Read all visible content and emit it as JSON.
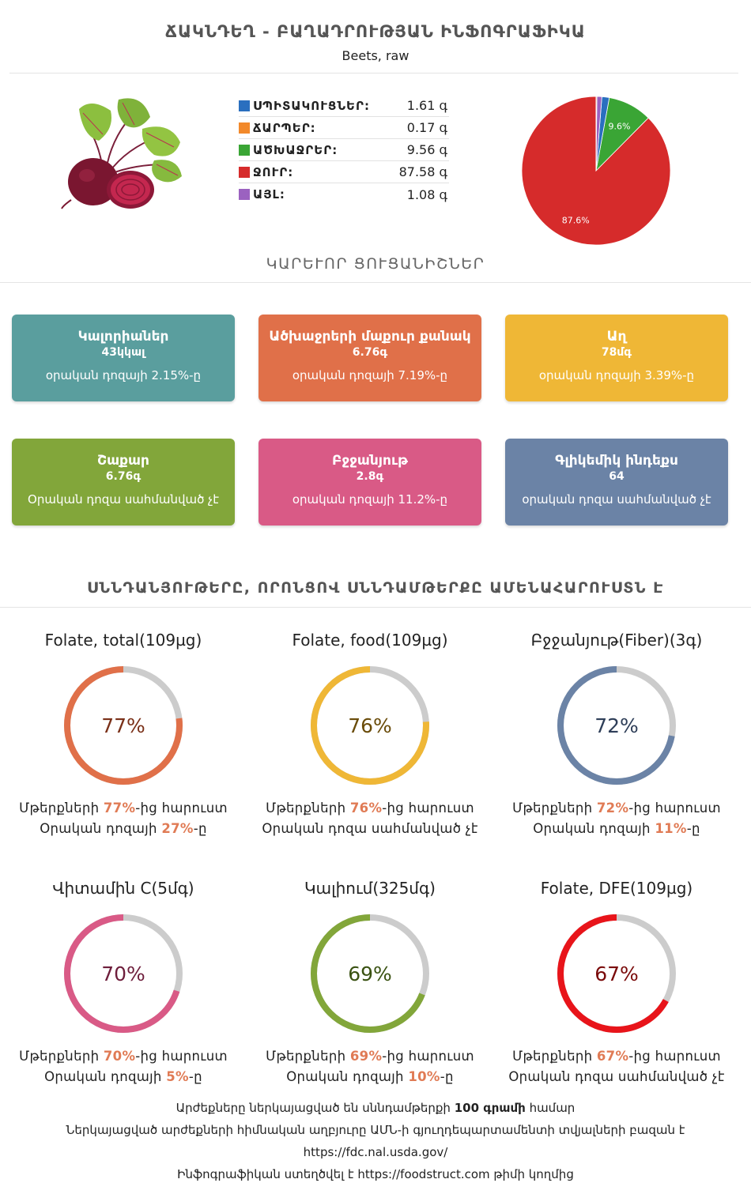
{
  "header": {
    "title": "ՃԱԿՆԴԵՂ - ԲԱՂԱԴՐՈՒԹՅԱՆ ԻՆՖՈԳՐԱՖԻԿԱ",
    "subtitle": "Beets, raw"
  },
  "composition": {
    "items": [
      {
        "label": "ՍՊԻՏԱԿՈՒՑՆԵՐ:",
        "value": "1.61 գ",
        "color": "#2a6fbf"
      },
      {
        "label": "ՃԱՐՊԵՐ:",
        "value": "0.17 գ",
        "color": "#f2892b"
      },
      {
        "label": "ԱԾԽԱՋՐԵՐ:",
        "value": "9.56 գ",
        "color": "#3aa535"
      },
      {
        "label": "ՋՈՒՐ:",
        "value": "87.58 գ",
        "color": "#d62b2b"
      },
      {
        "label": "ԱՅԼ:",
        "value": "1.08 գ",
        "color": "#9b62c0"
      }
    ]
  },
  "chart_data": {
    "type": "pie",
    "slices": [
      {
        "label": "ՋՈՒՐ",
        "value": 87.58,
        "color": "#d62b2b",
        "data_label": "87.6%"
      },
      {
        "label": "ԱԾԽԱՋՐԵՐ",
        "value": 9.56,
        "color": "#3aa535",
        "data_label": "9.6%"
      },
      {
        "label": "ՍՊԻՏԱԿՈՒՑՆԵՐ",
        "value": 1.61,
        "color": "#2a6fbf",
        "data_label": ""
      },
      {
        "label": "ԱՅԼ",
        "value": 1.08,
        "color": "#9b62c0",
        "data_label": ""
      },
      {
        "label": "ՃԱՐՊԵՐ",
        "value": 0.17,
        "color": "#f2892b",
        "data_label": ""
      }
    ]
  },
  "key_section_title": "ԿԱՐԵՒՈՐ ՑՈՒՑԱՆԻՇՆԵՐ",
  "cards": [
    {
      "title": "Կալորիաներ",
      "value": "43կկալ",
      "note": "օրական դոզայի 2.15%-ը",
      "color": "#5a9e9e"
    },
    {
      "title": "Ածխաջրերի մաքուր քանակ",
      "value": "6.76գ",
      "note": "օրական դոզայի 7.19%-ը",
      "color": "#e07049"
    },
    {
      "title": "Աղ",
      "value": "78մգ",
      "note": "օրական դոզայի 3.39%-ը",
      "color": "#efb736"
    },
    {
      "title": "Շաքար",
      "value": "6.76գ",
      "note": "Օրական դոզա սահմանված չէ",
      "color": "#82a63a"
    },
    {
      "title": "Բջջանյութ",
      "value": "2.8գ",
      "note": "օրական դոզայի 11.2%-ը",
      "color": "#d95a86"
    },
    {
      "title": "Գլիկեմիկ ինդեքս",
      "value": "64",
      "note": "օրական դոզա սահմանված չէ",
      "color": "#6b83a6"
    }
  ],
  "nutrients_section_title": "ՍՆՆԴԱՆՅՈՒԹԵՐԸ, ՈՐՈՆՑՈՎ ՍՆՆԴԱՄԹԵՐՔԸ ԱՄԵՆԱՀԱՐՈՒՍՏՆ Է",
  "nutrients": [
    {
      "title": "Folate, total(109µg)",
      "percent": 77,
      "percent_label": "77%",
      "color": "#e07049",
      "text_color": "#7a3018",
      "l1_pre": "Մթերքների ",
      "l1_hl": "77%",
      "l1_post": "-ից հարուստ",
      "l2_pre": "Օրական դոզայի ",
      "l2_hl": "27%",
      "l2_post": "-ը"
    },
    {
      "title": "Folate, food(109µg)",
      "percent": 76,
      "percent_label": "76%",
      "color": "#efb736",
      "text_color": "#6a4c0a",
      "l1_pre": "Մթերքների ",
      "l1_hl": "76%",
      "l1_post": "-ից հարուստ",
      "l2_pre": "Օրական դոզա սահմանված չէ",
      "l2_hl": "",
      "l2_post": ""
    },
    {
      "title": "Բջջանյութ(Fiber)(3գ)",
      "percent": 72,
      "percent_label": "72%",
      "color": "#6b83a6",
      "text_color": "#2e3e58",
      "l1_pre": "Մթերքների ",
      "l1_hl": "72%",
      "l1_post": "-ից հարուստ",
      "l2_pre": "Օրական դոզայի ",
      "l2_hl": "11%",
      "l2_post": "-ը"
    },
    {
      "title": "Վիտամին C(5մգ)",
      "percent": 70,
      "percent_label": "70%",
      "color": "#d95a86",
      "text_color": "#6e1e3c",
      "l1_pre": "Մթերքների ",
      "l1_hl": "70%",
      "l1_post": "-ից հարուստ",
      "l2_pre": "Օրական դոզայի ",
      "l2_hl": "5%",
      "l2_post": "-ը"
    },
    {
      "title": "Կալիում(325մգ)",
      "percent": 69,
      "percent_label": "69%",
      "color": "#82a63a",
      "text_color": "#3a5212",
      "l1_pre": "Մթերքների ",
      "l1_hl": "69%",
      "l1_post": "-ից հարուստ",
      "l2_pre": "Օրական դոզայի ",
      "l2_hl": "10%",
      "l2_post": "-ը"
    },
    {
      "title": "Folate, DFE(109µg)",
      "percent": 67,
      "percent_label": "67%",
      "color": "#e8141a",
      "text_color": "#7a0a0a",
      "l1_pre": "Մթերքների ",
      "l1_hl": "67%",
      "l1_post": "-ից հարուստ",
      "l2_pre": "Օրական դոզա սահմանված չէ",
      "l2_hl": "",
      "l2_post": ""
    }
  ],
  "footer": {
    "line1_pre": "Արժեքները ներկայացված են սննդամթերքի ",
    "line1_bold": "100 գրամի",
    "line1_post": " համար",
    "line2": "Ներկայացված արժեքների հիմնական աղբյուրը ԱՄՆ-ի գյուղդեպարտամենտի տվյալների բազան է",
    "line3": "https://fdc.nal.usda.gov/",
    "line4_pre": "Ինֆոգրաֆիկան ստեղծվել է ",
    "line4_link": "https://foodstruct.com",
    "line4_post": " թիմի կողմից"
  }
}
